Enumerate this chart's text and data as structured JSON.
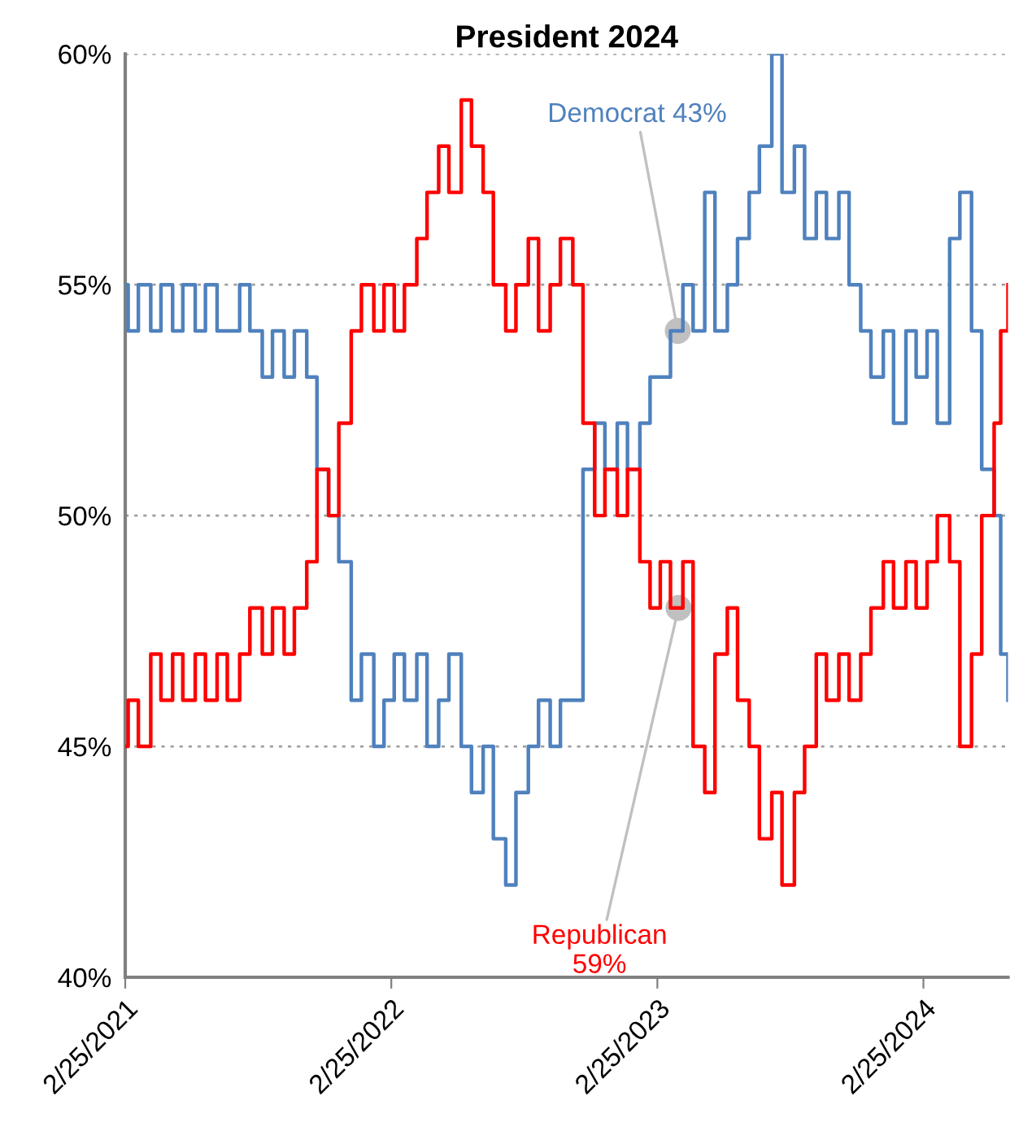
{
  "chart_data": {
    "type": "step",
    "title": "President 2024",
    "x": [
      "2021-02-25",
      "2021-03-01",
      "2021-03-15",
      "2021-04-01",
      "2021-04-15",
      "2021-05-01",
      "2021-05-15",
      "2021-06-01",
      "2021-06-15",
      "2021-07-01",
      "2021-07-15",
      "2021-08-01",
      "2021-08-15",
      "2021-09-01",
      "2021-09-15",
      "2021-10-01",
      "2021-10-15",
      "2021-11-01",
      "2021-11-15",
      "2021-12-01",
      "2021-12-15",
      "2022-01-01",
      "2022-01-15",
      "2022-02-01",
      "2022-02-15",
      "2022-03-01",
      "2022-03-15",
      "2022-04-01",
      "2022-04-15",
      "2022-05-01",
      "2022-05-15",
      "2022-06-01",
      "2022-06-15",
      "2022-07-01",
      "2022-07-15",
      "2022-08-01",
      "2022-08-15",
      "2022-09-01",
      "2022-09-15",
      "2022-10-01",
      "2022-10-15",
      "2022-11-01",
      "2022-11-15",
      "2022-12-01",
      "2022-12-15",
      "2023-01-01",
      "2023-01-15",
      "2023-02-01",
      "2023-02-15",
      "2023-03-01",
      "2023-03-15",
      "2023-04-01",
      "2023-04-15",
      "2023-05-01",
      "2023-05-15",
      "2023-06-01",
      "2023-06-15",
      "2023-07-01",
      "2023-07-15",
      "2023-08-01",
      "2023-08-15",
      "2023-09-01",
      "2023-09-15",
      "2023-10-01",
      "2023-10-15",
      "2023-11-01",
      "2023-11-15",
      "2023-12-01",
      "2023-12-15",
      "2024-01-01",
      "2024-01-15",
      "2024-02-01",
      "2024-02-15",
      "2024-03-01",
      "2024-03-15",
      "2024-04-01",
      "2024-04-15",
      "2024-05-01",
      "2024-05-15",
      "2024-06-01",
      "2024-06-10",
      "2024-06-20"
    ],
    "series": [
      {
        "color": "#4f81bd",
        "values": [
          55,
          54,
          55,
          54,
          55,
          54,
          55,
          54,
          55,
          54,
          54,
          55,
          54,
          53,
          54,
          53,
          54,
          53,
          51,
          50,
          49,
          46,
          47,
          45,
          46,
          47,
          46,
          47,
          45,
          46,
          47,
          45,
          44,
          45,
          43,
          42,
          44,
          45,
          46,
          45,
          46,
          46,
          51,
          52,
          51,
          52,
          51,
          52,
          53,
          53,
          54,
          55,
          54,
          57,
          54,
          55,
          56,
          57,
          58,
          60,
          57,
          58,
          56,
          57,
          56,
          57,
          55,
          54,
          53,
          54,
          52,
          54,
          53,
          54,
          52,
          56,
          57,
          54,
          51,
          50,
          47,
          46
        ]
      },
      {
        "color": "#ff0000",
        "values": [
          45,
          46,
          45,
          47,
          46,
          47,
          46,
          47,
          46,
          47,
          46,
          47,
          48,
          47,
          48,
          47,
          48,
          49,
          51,
          50,
          52,
          54,
          55,
          54,
          55,
          54,
          55,
          56,
          57,
          58,
          57,
          59,
          58,
          57,
          55,
          54,
          55,
          56,
          54,
          55,
          56,
          55,
          52,
          50,
          51,
          50,
          51,
          49,
          48,
          49,
          48,
          49,
          45,
          44,
          47,
          48,
          46,
          45,
          43,
          44,
          42,
          44,
          45,
          47,
          46,
          47,
          46,
          47,
          48,
          49,
          48,
          49,
          48,
          49,
          50,
          49,
          45,
          47,
          50,
          52,
          54,
          55
        ]
      }
    ],
    "xlim": [
      "2021-02-25",
      "2024-06-20"
    ],
    "xticks": [
      {
        "value": "2021-02-25",
        "label": "2/25/2021"
      },
      {
        "value": "2022-02-25",
        "label": "2/25/2022"
      },
      {
        "value": "2023-02-25",
        "label": "2/25/2023"
      },
      {
        "value": "2024-02-25",
        "label": "2/25/2024"
      }
    ],
    "ylim": [
      40,
      60
    ],
    "yticks": [
      {
        "value": 40,
        "label": "40%"
      },
      {
        "value": 45,
        "label": "45%"
      },
      {
        "value": 50,
        "label": "50%"
      },
      {
        "value": 55,
        "label": "55%"
      },
      {
        "value": 60,
        "label": "60%"
      }
    ],
    "grid": "y",
    "annotations": [
      {
        "text": "Democrat 43%",
        "x": "2023-03-25",
        "y": 54
      },
      {
        "text": "Republican\n59%",
        "x": "2023-03-26",
        "y": 48
      }
    ]
  }
}
